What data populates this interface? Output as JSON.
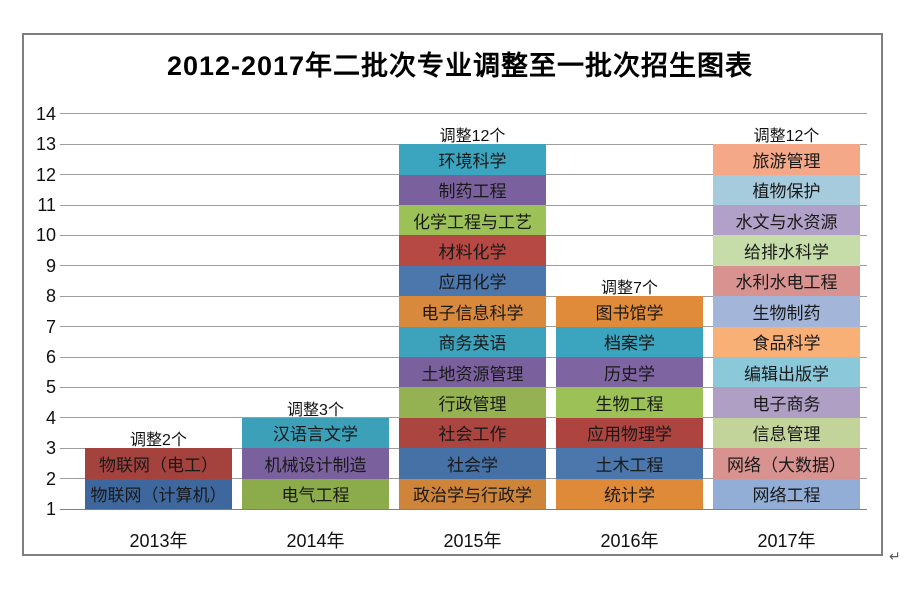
{
  "page": {
    "paragraph_mark": "↵"
  },
  "style": {
    "frame_border": "#7f7f7f",
    "gridline": "#9e9e9e",
    "axis_line": "#7f7f7f",
    "title_color": "#000000"
  },
  "chart_data": {
    "type": "bar",
    "stacked": true,
    "orientation": "vertical",
    "title": "2012-2017年二批次专业调整至一批次招生图表",
    "grid": true,
    "baseline": 1,
    "ylim": [
      1,
      14
    ],
    "y_ticks": [
      "1",
      "2",
      "3",
      "4",
      "5",
      "6",
      "7",
      "8",
      "9",
      "10",
      "11",
      "12",
      "13",
      "14"
    ],
    "categories": [
      "2013年",
      "2014年",
      "2015年",
      "2016年",
      "2017年"
    ],
    "values": [
      2,
      3,
      12,
      7,
      12
    ],
    "annotations": [
      "调整2个",
      "调整3个",
      "调整12个",
      "调整7个",
      "调整12个"
    ],
    "columns": [
      {
        "category": "2013年",
        "annotation": "调整2个",
        "count": 2,
        "blocks": [
          {
            "label": "物联网（计算机）",
            "color": "#3e689d"
          },
          {
            "label": "物联网（电工）",
            "color": "#a4423e"
          }
        ]
      },
      {
        "category": "2014年",
        "annotation": "调整3个",
        "count": 3,
        "blocks": [
          {
            "label": "电气工程",
            "color": "#8cab4a"
          },
          {
            "label": "机械设计制造",
            "color": "#7b609e"
          },
          {
            "label": "汉语言文学",
            "color": "#3da0b9"
          }
        ]
      },
      {
        "category": "2015年",
        "annotation": "调整12个",
        "count": 12,
        "blocks": [
          {
            "label": "政治学与行政学",
            "color": "#ce8439"
          },
          {
            "label": "社会学",
            "color": "#4571a6"
          },
          {
            "label": "社会工作",
            "color": "#aa4540"
          },
          {
            "label": "行政管理",
            "color": "#94b252"
          },
          {
            "label": "土地资源管理",
            "color": "#7b609e"
          },
          {
            "label": "商务英语",
            "color": "#3da3bd"
          },
          {
            "label": "电子信息科学",
            "color": "#d8893c"
          },
          {
            "label": "应用化学",
            "color": "#4b77ac"
          },
          {
            "label": "材料化学",
            "color": "#b64943"
          },
          {
            "label": "化学工程与工艺",
            "color": "#9cc156"
          },
          {
            "label": "制药工程",
            "color": "#7b609e"
          },
          {
            "label": "环境科学",
            "color": "#3ba4be"
          }
        ]
      },
      {
        "category": "2016年",
        "annotation": "调整7个",
        "count": 7,
        "blocks": [
          {
            "label": "统计学",
            "color": "#de8a39"
          },
          {
            "label": "土木工程",
            "color": "#4b77ac"
          },
          {
            "label": "应用物理学",
            "color": "#ae4440"
          },
          {
            "label": "生物工程",
            "color": "#9cc156"
          },
          {
            "label": "历史学",
            "color": "#7f64a2"
          },
          {
            "label": "档案学",
            "color": "#3ba4be"
          },
          {
            "label": "图书馆学",
            "color": "#e08b3a"
          }
        ]
      },
      {
        "category": "2017年",
        "annotation": "调整12个",
        "count": 12,
        "blocks": [
          {
            "label": "网络工程",
            "color": "#93aed6"
          },
          {
            "label": "网络（大数据）",
            "color": "#d89290"
          },
          {
            "label": "信息管理",
            "color": "#c2d49a"
          },
          {
            "label": "电子商务",
            "color": "#af9fc5"
          },
          {
            "label": "编辑出版学",
            "color": "#8ac8da"
          },
          {
            "label": "食品科学",
            "color": "#f9b077"
          },
          {
            "label": "生物制药",
            "color": "#a3b5d9"
          },
          {
            "label": "水利水电工程",
            "color": "#d89290"
          },
          {
            "label": "给排水科学",
            "color": "#c6dca9"
          },
          {
            "label": "水文与水资源",
            "color": "#b1a0c7"
          },
          {
            "label": "植物保护",
            "color": "#a5cbdd"
          },
          {
            "label": "旅游管理",
            "color": "#f5a888"
          }
        ]
      }
    ]
  }
}
